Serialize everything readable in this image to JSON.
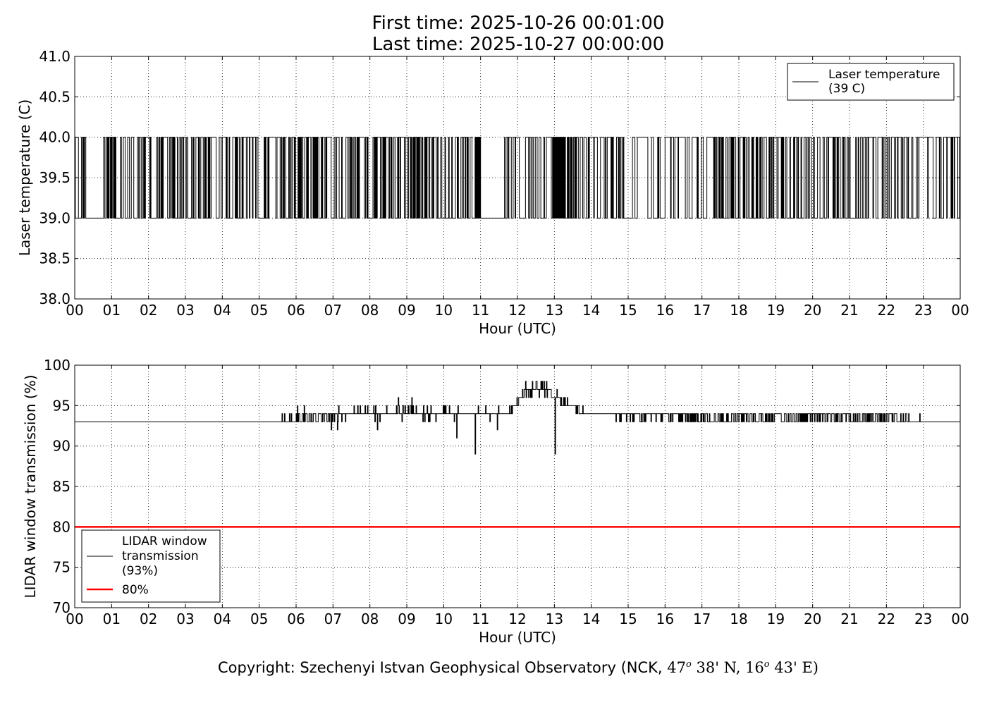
{
  "header": {
    "first_time": "First time: 2025-10-26 00:01:00",
    "last_time": "Last time: 2025-10-27 00:00:00"
  },
  "footer": {
    "prefix": "Copyright: Szechenyi Istvan Geophysical Observatory (NCK, ",
    "lat_deg": "47",
    "lat_min": " 38' N, ",
    "lon_deg": "16",
    "lon_min": " 43' E)",
    "deg_symbol": "o"
  },
  "colors": {
    "series_line": "#000000",
    "threshold_line": "#ff0000",
    "grid": "#000000"
  },
  "chart_data": [
    {
      "type": "line",
      "xlabel": "Hour (UTC)",
      "ylabel": "Laser temperature (C)",
      "xlim": [
        0,
        24
      ],
      "ylim": [
        38.0,
        41.0
      ],
      "xticks": [
        "00",
        "01",
        "02",
        "03",
        "04",
        "05",
        "06",
        "07",
        "08",
        "09",
        "10",
        "11",
        "12",
        "13",
        "14",
        "15",
        "16",
        "17",
        "18",
        "19",
        "20",
        "21",
        "22",
        "23",
        "00"
      ],
      "yticks": [
        "38.0",
        "38.5",
        "39.0",
        "39.5",
        "40.0",
        "40.5",
        "41.0"
      ],
      "grid": true,
      "legend_position": "top-right",
      "series": [
        {
          "name": "Laser temperature\n(39 C)",
          "values_described": "Toggles between 39.0 and 40.0 throughout the day",
          "low": 39.0,
          "high": 40.0,
          "segments": [
            {
              "start": 0.0,
              "end": 0.3,
              "density": 0.6
            },
            {
              "start": 0.3,
              "end": 0.78,
              "density": 0.0
            },
            {
              "start": 0.78,
              "end": 9.1,
              "density": 0.45
            },
            {
              "start": 9.1,
              "end": 9.35,
              "density": 0.9
            },
            {
              "start": 9.35,
              "end": 10.9,
              "density": 0.5
            },
            {
              "start": 10.9,
              "end": 11.0,
              "density": 0.95
            },
            {
              "start": 11.0,
              "end": 11.6,
              "density": 0.0
            },
            {
              "start": 11.6,
              "end": 12.95,
              "density": 0.25
            },
            {
              "start": 12.95,
              "end": 13.2,
              "density": 0.9
            },
            {
              "start": 13.2,
              "end": 13.6,
              "density": 0.75
            },
            {
              "start": 13.6,
              "end": 14.9,
              "density": 0.3
            },
            {
              "start": 14.9,
              "end": 15.6,
              "density": 0.15
            },
            {
              "start": 15.6,
              "end": 16.9,
              "density": 0.35
            },
            {
              "start": 16.9,
              "end": 17.3,
              "density": 0.15
            },
            {
              "start": 17.3,
              "end": 18.6,
              "density": 0.5
            },
            {
              "start": 18.6,
              "end": 24.0,
              "density": 0.35
            }
          ]
        }
      ]
    },
    {
      "type": "line",
      "xlabel": "Hour (UTC)",
      "ylabel": "LIDAR window transmission (%)",
      "xlim": [
        0,
        24
      ],
      "ylim": [
        70,
        100
      ],
      "xticks": [
        "00",
        "01",
        "02",
        "03",
        "04",
        "05",
        "06",
        "07",
        "08",
        "09",
        "10",
        "11",
        "12",
        "13",
        "14",
        "15",
        "16",
        "17",
        "18",
        "19",
        "20",
        "21",
        "22",
        "23",
        "00"
      ],
      "yticks": [
        "70",
        "75",
        "80",
        "85",
        "90",
        "95",
        "100"
      ],
      "grid": true,
      "legend_position": "bottom-left",
      "series": [
        {
          "name": "LIDAR window\ntransmission\n(93%)",
          "baseline": [
            [
              0,
              93
            ],
            [
              5.6,
              93
            ],
            [
              6.2,
              93.6
            ],
            [
              7.0,
              93.8
            ],
            [
              8.0,
              94
            ],
            [
              9.0,
              94.2
            ],
            [
              10.0,
              94
            ],
            [
              10.5,
              94
            ],
            [
              11.0,
              94
            ],
            [
              11.7,
              94
            ],
            [
              12.2,
              96.5
            ],
            [
              12.5,
              97
            ],
            [
              12.9,
              96.5
            ],
            [
              13.1,
              96
            ],
            [
              13.4,
              95
            ],
            [
              13.8,
              94
            ],
            [
              14.5,
              94
            ],
            [
              15.5,
              93.8
            ],
            [
              17.0,
              93.4
            ],
            [
              20.0,
              93.6
            ],
            [
              21.5,
              93.5
            ],
            [
              22.5,
              93.3
            ],
            [
              23.0,
              93
            ],
            [
              24.0,
              93
            ]
          ],
          "dips": [
            [
              6.95,
              92
            ],
            [
              8.2,
              92
            ],
            [
              10.85,
              89
            ],
            [
              11.45,
              92
            ],
            [
              13.02,
              89
            ],
            [
              10.35,
              91
            ]
          ]
        },
        {
          "name": "80%",
          "constant": 80
        }
      ]
    }
  ]
}
